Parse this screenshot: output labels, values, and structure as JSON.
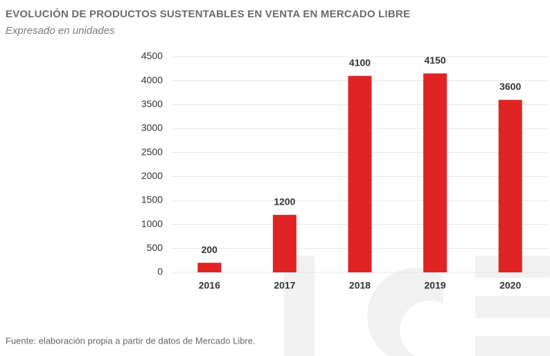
{
  "chart_data": {
    "type": "bar",
    "title": "EVOLUCIÓN DE PRODUCTOS SUSTENTABLES EN VENTA EN MERCADO LIBRE",
    "subtitle": "Expresado en unidades",
    "categories": [
      "2016",
      "2017",
      "2018",
      "2019",
      "2020"
    ],
    "values": [
      200,
      1200,
      4100,
      4150,
      3600
    ],
    "color": "#e02424",
    "ylim": [
      0,
      4500
    ],
    "yticks": [
      0,
      500,
      1000,
      1500,
      2000,
      2500,
      3000,
      3500,
      4000,
      4500
    ],
    "grid": true,
    "source": "Fuente: elaboración propia a partir de datos de Mercado Libre."
  }
}
